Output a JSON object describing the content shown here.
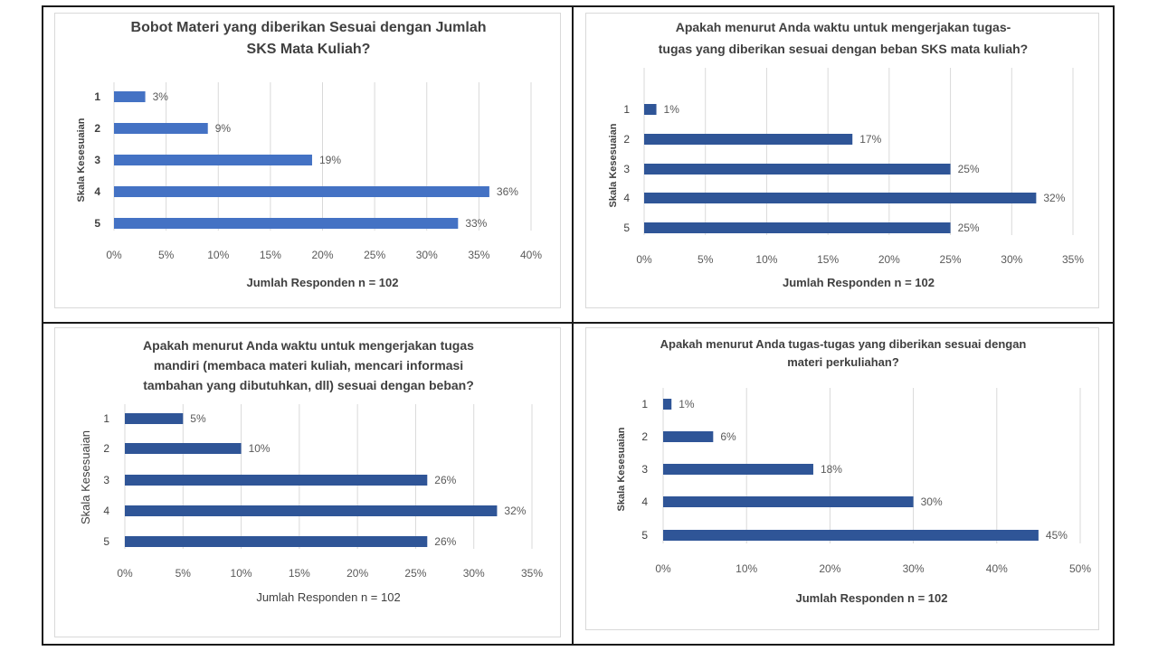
{
  "colors": {
    "bar_light": "#4472c4",
    "bar_dark": "#2f5597",
    "grid": "#d9d9d9",
    "text": "#595959",
    "title": "#404040"
  },
  "chart_data": [
    {
      "type": "bar",
      "orientation": "horizontal",
      "title": "Bobot Materi yang diberikan Sesuai dengan Jumlah SKS Mata Kuliah?",
      "title_lines": [
        "Bobot Materi yang diberikan Sesuai dengan Jumlah",
        "SKS Mata Kuliah?"
      ],
      "categories": [
        "1",
        "2",
        "3",
        "4",
        "5"
      ],
      "values": [
        3,
        9,
        19,
        36,
        33
      ],
      "data_labels": [
        "3%",
        "9%",
        "19%",
        "36%",
        "33%"
      ],
      "xlim": [
        0,
        40
      ],
      "xticks": [
        "0%",
        "5%",
        "10%",
        "15%",
        "20%",
        "25%",
        "30%",
        "35%",
        "40%"
      ],
      "xlabel": "Jumlah Responden n = 102",
      "ylabel": "Skala Kesesuaian",
      "grid": true
    },
    {
      "type": "bar",
      "orientation": "horizontal",
      "title": "Apakah menurut Anda waktu untuk mengerjakan tugas-tugas yang diberikan sesuai dengan beban SKS mata kuliah?",
      "title_lines": [
        "Apakah menurut Anda waktu untuk mengerjakan tugas-",
        "tugas yang diberikan sesuai dengan beban SKS mata kuliah?"
      ],
      "categories": [
        "1",
        "2",
        "3",
        "4",
        "5"
      ],
      "values": [
        1,
        17,
        25,
        32,
        25
      ],
      "data_labels": [
        "1%",
        "17%",
        "25%",
        "32%",
        "25%"
      ],
      "xlim": [
        0,
        35
      ],
      "xticks": [
        "0%",
        "5%",
        "10%",
        "15%",
        "20%",
        "25%",
        "30%",
        "35%"
      ],
      "xlabel": "Jumlah Responden n = 102",
      "ylabel": "Skala Kesesuaian",
      "grid": true
    },
    {
      "type": "bar",
      "orientation": "horizontal",
      "title": "Apakah menurut Anda waktu untuk mengerjakan tugas mandiri (membaca materi kuliah, mencari informasi tambahan yang dibutuhkan, dll) sesuai dengan beban?",
      "title_lines": [
        "Apakah menurut Anda waktu untuk mengerjakan tugas",
        "mandiri (membaca materi kuliah, mencari informasi",
        "tambahan yang dibutuhkan, dll) sesuai dengan beban?"
      ],
      "categories": [
        "1",
        "2",
        "3",
        "4",
        "5"
      ],
      "values": [
        5,
        10,
        26,
        32,
        26
      ],
      "data_labels": [
        "5%",
        "10%",
        "26%",
        "32%",
        "26%"
      ],
      "xlim": [
        0,
        35
      ],
      "xticks": [
        "0%",
        "5%",
        "10%",
        "15%",
        "20%",
        "25%",
        "30%",
        "35%"
      ],
      "xlabel": "Jumlah Responden n = 102",
      "ylabel": "Skala Kesesuaian",
      "grid": true
    },
    {
      "type": "bar",
      "orientation": "horizontal",
      "title": "Apakah menurut Anda tugas-tugas yang diberikan sesuai dengan materi perkuliahan?",
      "title_lines": [
        "Apakah menurut Anda tugas-tugas yang diberikan sesuai dengan",
        "materi perkuliahan?"
      ],
      "categories": [
        "1",
        "2",
        "3",
        "4",
        "5"
      ],
      "values": [
        1,
        6,
        18,
        30,
        45
      ],
      "data_labels": [
        "1%",
        "6%",
        "18%",
        "30%",
        "45%"
      ],
      "xlim": [
        0,
        50
      ],
      "xticks": [
        "0%",
        "10%",
        "20%",
        "30%",
        "40%",
        "50%"
      ],
      "xlabel": "Jumlah Responden n = 102",
      "ylabel": "Skala Kesesuaian",
      "grid": true
    }
  ]
}
